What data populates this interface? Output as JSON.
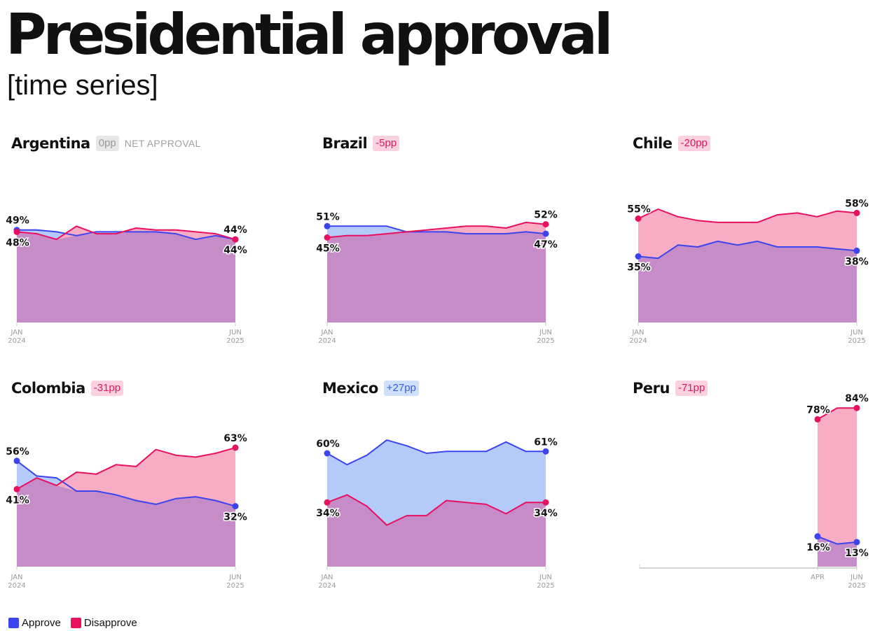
{
  "title": "Presidential approval",
  "subtitle": "[time series]",
  "net_approval_label": "NET APPROVAL",
  "colors": {
    "approve": "#3b44ee",
    "disapprove": "#e8105f",
    "approve_fill": "#b4cbfa",
    "disapprove_fill": "#f8adc4",
    "overlap_fill": "#c58cc8"
  },
  "legend": {
    "approve": "Approve",
    "disapprove": "Disapprove"
  },
  "panels": [
    {
      "country": "Argentina",
      "net": "0pp",
      "badge_style": "neutral"
    },
    {
      "country": "Brazil",
      "net": "-5pp",
      "badge_style": "neg"
    },
    {
      "country": "Chile",
      "net": "-20pp",
      "badge_style": "neg"
    },
    {
      "country": "Colombia",
      "net": "-31pp",
      "badge_style": "neg"
    },
    {
      "country": "Mexico",
      "net": "+27pp",
      "badge_style": "pos"
    },
    {
      "country": "Peru",
      "net": "-71pp",
      "badge_style": "neg"
    }
  ],
  "chart_data": [
    {
      "type": "area",
      "country": "Argentina",
      "x_ticks": [
        [
          "JAN",
          "2024"
        ],
        [
          "JUN",
          "2025"
        ]
      ],
      "ylim": [
        0,
        100
      ],
      "series": [
        {
          "name": "Approve",
          "values": [
            49,
            49,
            48,
            46,
            48,
            48,
            48,
            48,
            47,
            44,
            46,
            44
          ]
        },
        {
          "name": "Disapprove",
          "values": [
            48,
            47,
            44,
            51,
            47,
            47,
            50,
            49,
            49,
            48,
            47,
            44
          ]
        }
      ],
      "start_labels": [
        "49%",
        "48%"
      ],
      "end_labels": [
        "44%",
        "44%"
      ]
    },
    {
      "type": "area",
      "country": "Brazil",
      "x_ticks": [
        [
          "JAN",
          "2024"
        ],
        [
          "JUN",
          "2025"
        ]
      ],
      "ylim": [
        0,
        100
      ],
      "series": [
        {
          "name": "Approve",
          "values": [
            51,
            51,
            51,
            51,
            48,
            48,
            48,
            47,
            47,
            47,
            48,
            47
          ]
        },
        {
          "name": "Disapprove",
          "values": [
            45,
            46,
            46,
            47,
            48,
            49,
            50,
            51,
            51,
            50,
            53,
            52
          ]
        }
      ],
      "start_labels": [
        "51%",
        "45%"
      ],
      "end_labels": [
        "52%",
        "47%"
      ]
    },
    {
      "type": "area",
      "country": "Chile",
      "x_ticks": [
        [
          "JAN",
          "2024"
        ],
        [
          "JUN",
          "2025"
        ]
      ],
      "ylim": [
        0,
        100
      ],
      "series": [
        {
          "name": "Approve",
          "values": [
            35,
            34,
            41,
            40,
            43,
            41,
            43,
            40,
            40,
            40,
            39,
            38
          ]
        },
        {
          "name": "Disapprove",
          "values": [
            55,
            60,
            56,
            54,
            53,
            53,
            53,
            57,
            58,
            56,
            59,
            58
          ]
        }
      ],
      "start_labels": [
        "55%",
        "35%"
      ],
      "end_labels": [
        "58%",
        "38%"
      ]
    },
    {
      "type": "area",
      "country": "Colombia",
      "x_ticks": [
        [
          "JAN",
          "2024"
        ],
        [
          "JUN",
          "2025"
        ]
      ],
      "ylim": [
        0,
        100
      ],
      "series": [
        {
          "name": "Approve",
          "values": [
            56,
            48,
            47,
            40,
            40,
            38,
            35,
            33,
            36,
            37,
            35,
            32
          ]
        },
        {
          "name": "Disapprove",
          "values": [
            41,
            47,
            43,
            50,
            49,
            54,
            53,
            62,
            59,
            58,
            60,
            63
          ]
        }
      ],
      "start_labels": [
        "56%",
        "41%"
      ],
      "end_labels": [
        "63%",
        "32%"
      ]
    },
    {
      "type": "area",
      "country": "Mexico",
      "x_ticks": [
        [
          "JAN",
          "2024"
        ],
        [
          "JUN",
          "2025"
        ]
      ],
      "ylim": [
        0,
        100
      ],
      "series": [
        {
          "name": "Approve",
          "values": [
            60,
            54,
            59,
            67,
            64,
            60,
            61,
            61,
            61,
            66,
            61,
            61
          ]
        },
        {
          "name": "Disapprove",
          "values": [
            34,
            38,
            32,
            22,
            27,
            27,
            35,
            34,
            33,
            28,
            34,
            34
          ]
        }
      ],
      "start_labels": [
        "60%",
        "34%"
      ],
      "end_labels": [
        "61%",
        "34%"
      ]
    },
    {
      "type": "area",
      "country": "Peru",
      "x_ticks": [
        [
          "APR",
          ""
        ],
        [
          "JUN",
          "2025"
        ]
      ],
      "ylim": [
        0,
        100
      ],
      "series": [
        {
          "name": "Approve",
          "values": [
            16,
            12,
            13
          ]
        },
        {
          "name": "Disapprove",
          "values": [
            78,
            84,
            84
          ]
        }
      ],
      "start_labels": [
        "78%",
        "16%"
      ],
      "end_labels": [
        "84%",
        "13%"
      ]
    }
  ]
}
